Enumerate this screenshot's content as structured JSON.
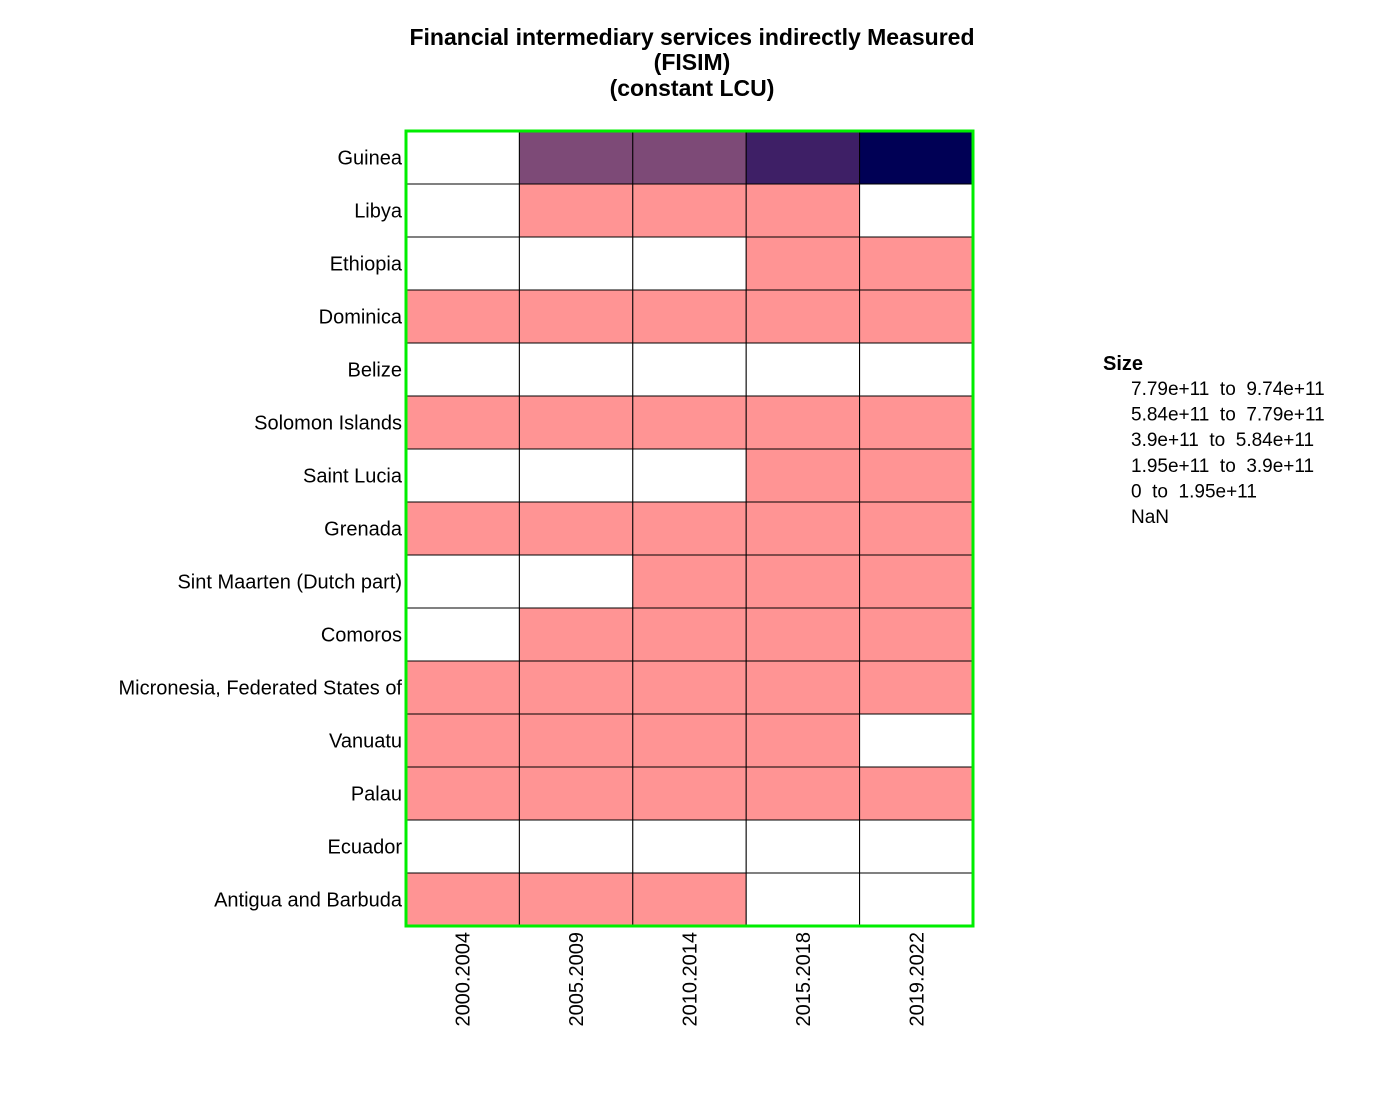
{
  "chart_data": {
    "type": "heatmap",
    "title": [
      "Financial intermediary services indirectly Measured",
      "(FISIM)",
      "(constant LCU)"
    ],
    "columns": [
      "2000.2004",
      "2005.2009",
      "2010.2014",
      "2015.2018",
      "2019.2022"
    ],
    "rows": [
      "Guinea",
      "Libya",
      "Ethiopia",
      "Dominica",
      "Belize",
      "Solomon Islands",
      "Saint Lucia",
      "Grenada",
      "Sint Maarten (Dutch part)",
      "Comoros",
      "Micronesia, Federated States of",
      "Vanuatu",
      "Palau",
      "Ecuador",
      "Antigua and Barbuda"
    ],
    "cell_bins": [
      [
        5,
        2,
        2,
        1,
        0
      ],
      [
        5,
        4,
        4,
        4,
        5
      ],
      [
        5,
        5,
        5,
        4,
        4
      ],
      [
        4,
        4,
        4,
        4,
        4
      ],
      [
        5,
        5,
        5,
        5,
        5
      ],
      [
        4,
        4,
        4,
        4,
        4
      ],
      [
        5,
        5,
        5,
        4,
        4
      ],
      [
        4,
        4,
        4,
        4,
        4
      ],
      [
        5,
        5,
        4,
        4,
        4
      ],
      [
        5,
        4,
        4,
        4,
        4
      ],
      [
        4,
        4,
        4,
        4,
        4
      ],
      [
        4,
        4,
        4,
        4,
        5
      ],
      [
        4,
        4,
        4,
        4,
        4
      ],
      [
        5,
        5,
        5,
        5,
        5
      ],
      [
        4,
        4,
        4,
        5,
        5
      ]
    ],
    "legend": {
      "title": "Size",
      "position": "right",
      "entries": [
        {
          "label": "7.79e+11  to  9.74e+11",
          "color": "#000055"
        },
        {
          "label": "5.84e+11  to  7.79e+11",
          "color": "#3e1f66"
        },
        {
          "label": "3.9e+11  to  5.84e+11",
          "color": "#7d4a77"
        },
        {
          "label": "1.95e+11  to  3.9e+11",
          "color": "#bf7088"
        },
        {
          "label": "0  to  1.95e+11",
          "color": "#ff9494"
        },
        {
          "label": "NaN",
          "color": "#ffffff"
        }
      ]
    },
    "frame_color": "#00ee00",
    "cell_border_color": "#000000"
  }
}
